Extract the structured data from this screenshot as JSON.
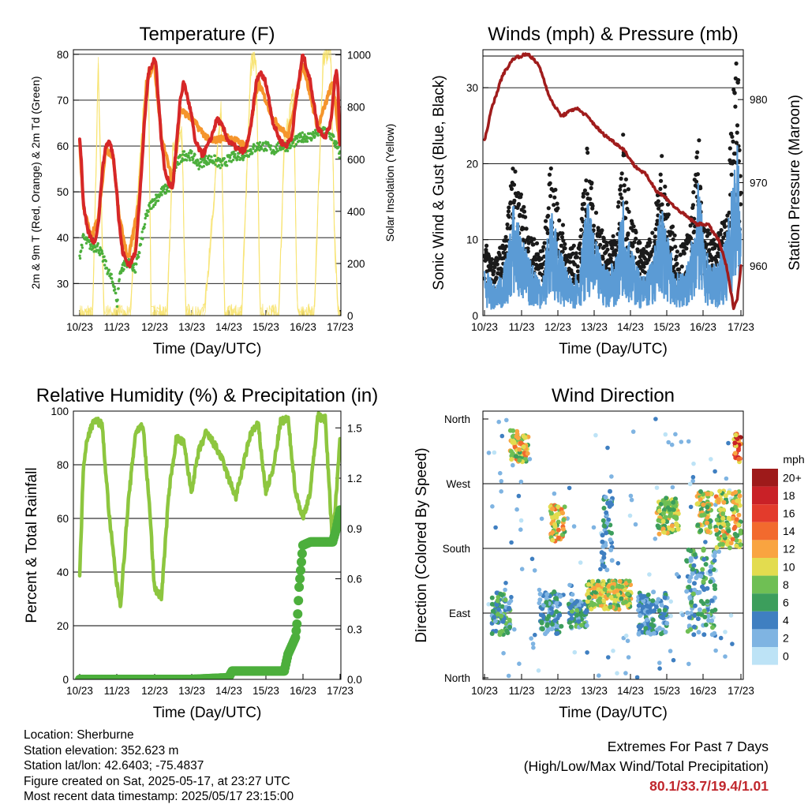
{
  "chart_data": [
    {
      "type": "line",
      "title": "Temperature (F)",
      "xlabel": "Time (Day/UTC)",
      "ylabel": "2m & 9m T (Red, Orange) & 2m Td (Green)",
      "y2label": "Solar Insolation (Yellow)",
      "x_ticks": [
        "10/23",
        "11/23",
        "12/23",
        "13/23",
        "14/23",
        "15/23",
        "16/23",
        "17/23"
      ],
      "ylim": [
        23,
        81
      ],
      "y_ticks": [
        30,
        40,
        50,
        60,
        70,
        80
      ],
      "y2lim": [
        0,
        1020
      ],
      "y2_ticks": [
        0,
        200,
        400,
        600,
        800,
        1000
      ],
      "grid": true,
      "series": [
        {
          "color": "#d62728",
          "axis": "left",
          "x": [
            0,
            0.05,
            0.1,
            0.2,
            0.3,
            0.4,
            0.5,
            0.6,
            0.7,
            0.8,
            0.9,
            1.0,
            1.05,
            1.15,
            1.25,
            1.35,
            1.5,
            1.6,
            1.75,
            1.85,
            1.95,
            2.0,
            2.05,
            2.1,
            2.2,
            2.3,
            2.4,
            2.5,
            2.6,
            2.7,
            2.8,
            3.0,
            3.1,
            3.3,
            3.5,
            3.7,
            3.85,
            4.0,
            4.15,
            4.3,
            4.45,
            4.6,
            4.75,
            4.85,
            5.0,
            5.2,
            5.4,
            5.55,
            5.7,
            5.85,
            6.0,
            6.2,
            6.4,
            6.6,
            6.75,
            6.85,
            6.9,
            6.95,
            7.0
          ],
          "values": [
            62,
            56,
            47,
            42,
            40,
            39,
            43,
            54,
            60,
            61,
            58,
            50,
            44,
            37,
            35,
            34,
            37,
            47,
            66,
            76,
            78,
            79,
            78,
            72,
            61,
            54,
            52,
            51,
            60,
            70,
            74,
            67,
            61,
            58,
            61,
            66,
            64,
            61,
            60,
            59,
            59,
            64,
            74,
            76,
            74,
            65,
            61,
            60,
            62,
            72,
            80,
            74,
            64,
            62,
            65,
            74,
            77,
            72,
            58
          ]
        },
        {
          "color": "#f5952c",
          "axis": "left",
          "x": [
            0,
            0.1,
            0.3,
            0.5,
            0.7,
            0.9,
            1.05,
            1.3,
            1.6,
            1.8,
            2.0,
            2.2,
            2.5,
            2.7,
            3.0,
            3.5,
            4.0,
            4.5,
            4.8,
            5.2,
            5.6,
            6.0,
            6.4,
            6.8,
            7.0
          ],
          "values": [
            61,
            47,
            40,
            44,
            59,
            58,
            45,
            35,
            48,
            74,
            78,
            62,
            52,
            68,
            66,
            61,
            62,
            60,
            74,
            66,
            62,
            78,
            64,
            74,
            60
          ]
        },
        {
          "color": "#4caf3c",
          "axis": "left",
          "x": [
            0,
            0.1,
            0.2,
            0.35,
            0.5,
            0.6,
            0.75,
            0.85,
            0.95,
            1.0,
            1.05,
            1.1,
            1.2,
            1.3,
            1.4,
            1.5,
            1.6,
            1.7,
            1.8,
            1.9,
            2.0,
            2.2,
            2.4,
            2.6,
            2.8,
            3.0,
            3.2,
            3.4,
            3.6,
            3.8,
            4.0,
            4.2,
            4.4,
            4.6,
            4.8,
            5.0,
            5.2,
            5.4,
            5.6,
            5.8,
            6.0,
            6.2,
            6.4,
            6.6,
            6.8,
            7.0
          ],
          "values": [
            36,
            40,
            39,
            38,
            38,
            36,
            33,
            31,
            29,
            25,
            30,
            33,
            34,
            35,
            34,
            33,
            37,
            41,
            45,
            47,
            48,
            50,
            51,
            56,
            58,
            58,
            56,
            57,
            57,
            56,
            57,
            58,
            58,
            59,
            60,
            60,
            59,
            60,
            60,
            61,
            62,
            62,
            63,
            63,
            62,
            58
          ]
        },
        {
          "color": "#f7e26b",
          "axis": "right",
          "x": [
            0,
            0.35,
            0.5,
            0.65,
            0.8,
            1.35,
            1.5,
            1.75,
            1.85,
            1.92,
            2.15,
            2.35,
            2.5,
            2.75,
            2.85,
            3.1,
            3.35,
            3.55,
            3.8,
            3.9,
            4.1,
            4.35,
            4.6,
            4.75,
            4.85,
            5.1,
            5.35,
            5.5,
            5.75,
            5.85,
            6.1,
            6.3,
            6.55,
            6.75,
            6.85,
            6.95,
            7.0
          ],
          "values": [
            0,
            0,
            950,
            0,
            0,
            0,
            350,
            850,
            940,
            0,
            0,
            0,
            620,
            700,
            0,
            0,
            0,
            350,
            800,
            0,
            0,
            0,
            960,
            980,
            0,
            0,
            0,
            650,
            850,
            0,
            0,
            0,
            1000,
            1020,
            300,
            0,
            0
          ]
        }
      ]
    },
    {
      "type": "line",
      "title": "Winds (mph) & Pressure (mb)",
      "xlabel": "Time (Day/UTC)",
      "ylabel": "Sonic Wind & Gust (Blue, Black)",
      "y2label": "Station Pressure (Maroon)",
      "x_ticks": [
        "10/23",
        "11/23",
        "12/23",
        "13/23",
        "14/23",
        "15/23",
        "16/23",
        "17/23"
      ],
      "ylim": [
        0,
        35
      ],
      "y_ticks": [
        0,
        10,
        20,
        30
      ],
      "y2lim": [
        954,
        986
      ],
      "y2_ticks": [
        960,
        970,
        980
      ],
      "grid": true,
      "series": [
        {
          "color": "#a01c1c",
          "axis": "right",
          "x": [
            0,
            0.2,
            0.5,
            0.8,
            1.2,
            1.5,
            1.8,
            2.1,
            2.5,
            2.8,
            3.2,
            3.5,
            3.8,
            4.1,
            4.4,
            4.7,
            5.0,
            5.2,
            5.5,
            5.8,
            6.1,
            6.4,
            6.6,
            6.8,
            6.9,
            7.0
          ],
          "values": [
            975,
            979,
            983,
            985,
            985.5,
            984,
            980,
            978,
            979,
            978,
            976,
            975,
            974,
            972,
            971,
            969,
            968,
            967,
            966,
            965,
            965,
            963,
            960,
            955,
            956,
            960
          ]
        },
        {
          "color": "#1a1a1a",
          "axis": "left",
          "x": [
            0,
            0.3,
            0.6,
            0.8,
            0.9,
            1.2,
            1.6,
            1.8,
            2.0,
            2.3,
            2.6,
            2.8,
            3.0,
            3.3,
            3.6,
            3.8,
            4.0,
            4.3,
            4.6,
            4.85,
            5.0,
            5.3,
            5.6,
            5.85,
            6.0,
            6.3,
            6.6,
            6.8,
            6.9,
            7.0
          ],
          "values": [
            8,
            6,
            9,
            17,
            15,
            9,
            7,
            16,
            12,
            7,
            8,
            18,
            12,
            8,
            9,
            20,
            11,
            7,
            9,
            18,
            12,
            7,
            9,
            19,
            10,
            8,
            11,
            24,
            29,
            16
          ]
        },
        {
          "color": "#5b9bd5",
          "axis": "left",
          "x": [
            0,
            0.3,
            0.6,
            0.8,
            0.9,
            1.2,
            1.6,
            1.8,
            2.0,
            2.3,
            2.6,
            2.8,
            3.0,
            3.3,
            3.6,
            3.8,
            4.0,
            4.3,
            4.6,
            4.85,
            5.0,
            5.3,
            5.6,
            5.85,
            6.0,
            6.3,
            6.6,
            6.8,
            6.9,
            7.0
          ],
          "values": [
            5,
            3,
            6,
            12,
            10,
            6,
            4,
            11,
            8,
            4,
            5,
            12,
            8,
            5,
            6,
            13,
            7,
            4,
            6,
            12,
            8,
            4,
            6,
            14,
            7,
            5,
            8,
            15,
            18,
            10
          ]
        }
      ]
    },
    {
      "type": "line",
      "title": "Relative Humidity (%) & Precipitation (in)",
      "xlabel": "Time (Day/UTC)",
      "ylabel": "Percent & Total Rainfall",
      "x_ticks": [
        "10/23",
        "11/23",
        "12/23",
        "13/23",
        "14/23",
        "15/23",
        "16/23",
        "17/23"
      ],
      "ylim": [
        0,
        100
      ],
      "y_ticks": [
        0,
        20,
        40,
        60,
        80,
        100
      ],
      "y2lim": [
        0,
        1.6
      ],
      "y2_ticks": [
        "0.0",
        "0.3",
        "0.6",
        "0.9",
        "1.2",
        "1.5"
      ],
      "grid": true,
      "series": [
        {
          "color": "#8dc63f",
          "axis": "left",
          "x": [
            0,
            0.1,
            0.2,
            0.4,
            0.6,
            0.8,
            1.0,
            1.1,
            1.3,
            1.5,
            1.7,
            1.9,
            2.0,
            2.1,
            2.2,
            2.4,
            2.6,
            2.8,
            3.0,
            3.2,
            3.4,
            3.6,
            3.8,
            4.0,
            4.2,
            4.4,
            4.6,
            4.8,
            5.0,
            5.2,
            5.4,
            5.6,
            5.8,
            6.0,
            6.2,
            6.4,
            6.6,
            6.8,
            7.0
          ],
          "values": [
            38,
            80,
            90,
            97,
            95,
            60,
            35,
            28,
            65,
            92,
            95,
            60,
            35,
            32,
            31,
            70,
            90,
            88,
            70,
            85,
            92,
            88,
            83,
            75,
            68,
            80,
            92,
            95,
            70,
            78,
            96,
            97,
            70,
            60,
            70,
            98,
            97,
            50,
            90
          ]
        },
        {
          "color": "#4caf3c",
          "axis": "right",
          "x": [
            0,
            1.0,
            2.0,
            3.0,
            4.0,
            4.1,
            4.2,
            5.0,
            5.5,
            5.6,
            5.8,
            5.85,
            5.9,
            6.0,
            6.2,
            6.5,
            6.8,
            6.9,
            7.0
          ],
          "values": [
            0,
            0,
            0,
            0,
            0.01,
            0.05,
            0.05,
            0.05,
            0.05,
            0.15,
            0.25,
            0.35,
            0.55,
            0.8,
            0.82,
            0.82,
            0.82,
            0.9,
            1.01
          ]
        }
      ]
    },
    {
      "type": "scatter",
      "title": "Wind Direction",
      "xlabel": "Time (Day/UTC)",
      "ylabel": "Direction (Colored By Speed)",
      "x_ticks": [
        "10/23",
        "11/23",
        "12/23",
        "13/23",
        "14/23",
        "15/23",
        "16/23",
        "17/23"
      ],
      "y_ticks": [
        "North",
        "West",
        "South",
        "East",
        "North"
      ],
      "ylim": [
        0,
        360
      ],
      "grid": true,
      "colorbar": {
        "title": "mph",
        "labels": [
          "20+",
          "18",
          "16",
          "14",
          "12",
          "10",
          "8",
          "6",
          "4",
          "2",
          "0"
        ],
        "colors": [
          "#9e1a1a",
          "#c92127",
          "#e33b2c",
          "#f26a2e",
          "#f9a440",
          "#e3dc4f",
          "#6fbf54",
          "#3c9e5c",
          "#3f7fc1",
          "#7fb4e2",
          "#bde3f6"
        ]
      },
      "clusters": [
        {
          "x": [
            0.2,
            0.7
          ],
          "dir": [
            60,
            120
          ],
          "speed": [
            2,
            9
          ]
        },
        {
          "x": [
            0.7,
            1.2
          ],
          "dir": [
            300,
            345
          ],
          "speed": [
            6,
            14
          ]
        },
        {
          "x": [
            1.5,
            2.1
          ],
          "dir": [
            60,
            120
          ],
          "speed": [
            1,
            7
          ]
        },
        {
          "x": [
            1.8,
            2.2
          ],
          "dir": [
            190,
            240
          ],
          "speed": [
            6,
            14
          ]
        },
        {
          "x": [
            2.3,
            2.8
          ],
          "dir": [
            70,
            110
          ],
          "speed": [
            2,
            9
          ]
        },
        {
          "x": [
            2.8,
            4.0
          ],
          "dir": [
            95,
            135
          ],
          "speed": [
            6,
            13
          ]
        },
        {
          "x": [
            3.2,
            3.5
          ],
          "dir": [
            150,
            260
          ],
          "speed": [
            1,
            6
          ]
        },
        {
          "x": [
            4.2,
            5.0
          ],
          "dir": [
            60,
            120
          ],
          "speed": [
            1,
            6
          ]
        },
        {
          "x": [
            4.7,
            5.3
          ],
          "dir": [
            200,
            250
          ],
          "speed": [
            5,
            12
          ]
        },
        {
          "x": [
            5.5,
            6.3
          ],
          "dir": [
            60,
            180
          ],
          "speed": [
            1,
            8
          ]
        },
        {
          "x": [
            5.8,
            6.2
          ],
          "dir": [
            200,
            260
          ],
          "speed": [
            6,
            13
          ]
        },
        {
          "x": [
            6.3,
            7.0
          ],
          "dir": [
            180,
            260
          ],
          "speed": [
            5,
            14
          ]
        },
        {
          "x": [
            6.8,
            7.0
          ],
          "dir": [
            300,
            340
          ],
          "speed": [
            10,
            20
          ]
        }
      ]
    }
  ],
  "info": {
    "location": "Location: Sherburne",
    "elevation": "Station elevation: 352.623 m",
    "latlon": "Station lat/lon: 42.6403; -75.4837",
    "created": "Figure created on Sat, 2025-05-17, at 23:27 UTC",
    "recent": "Most recent data timestamp: 2025/05/17 23:15:00"
  },
  "extremes": {
    "title": "Extremes For Past 7 Days",
    "subtitle": "(High/Low/Max Wind/Total Precipitation)",
    "values": "80.1/33.7/19.4/1.01"
  }
}
